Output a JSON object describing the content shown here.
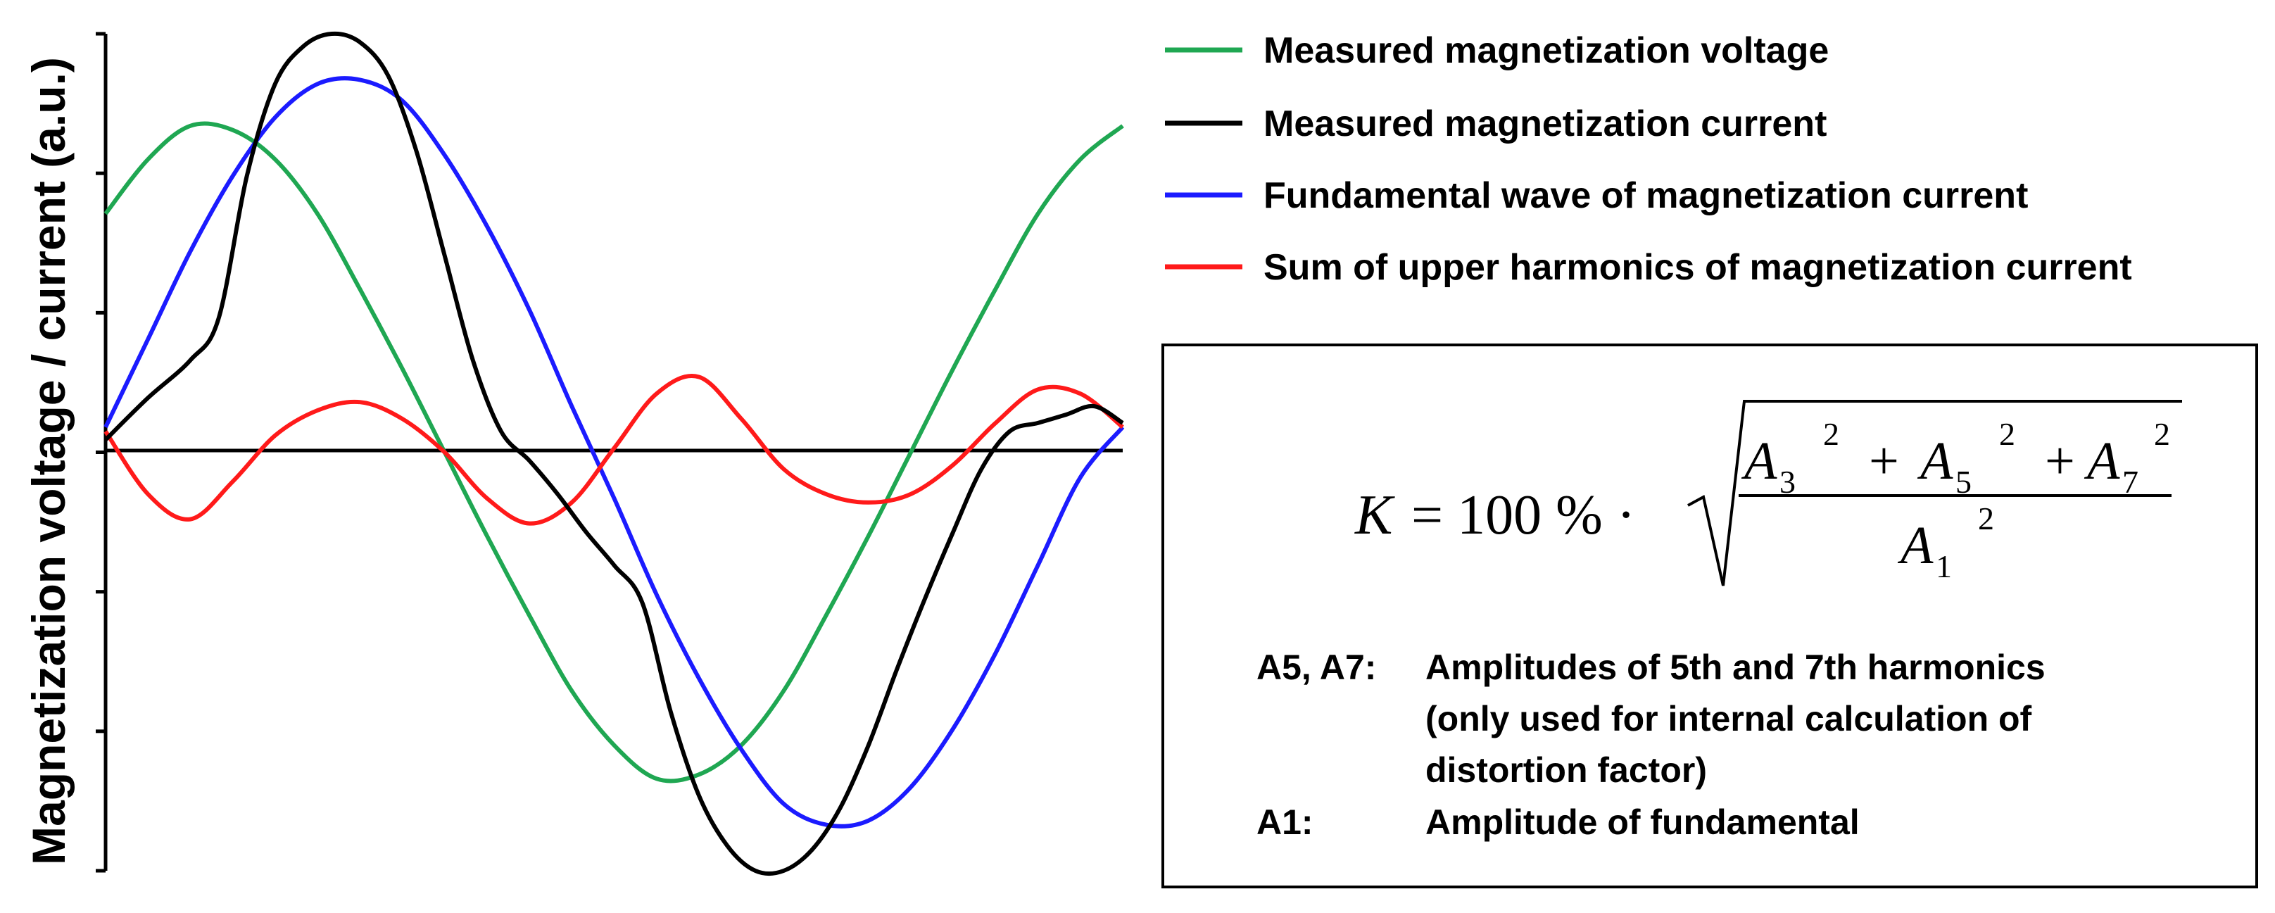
{
  "chart_data": {
    "type": "line",
    "title": "",
    "xlabel": "",
    "ylabel": "Magnetization voltage / current (a.u.)",
    "xlim": [
      0,
      360
    ],
    "ylim": [
      -1,
      1
    ],
    "grid": false,
    "legend_position": "top-right",
    "series": [
      {
        "name": "Measured magnetization voltage",
        "color": "#1fa752",
        "x": [
          0,
          15,
          30,
          45,
          60,
          75,
          90,
          105,
          120,
          135,
          150,
          165,
          180,
          195,
          210,
          225,
          240,
          255,
          270,
          285,
          300,
          315,
          330,
          345,
          360
        ],
        "y": [
          0.57,
          0.7,
          0.78,
          0.77,
          0.7,
          0.57,
          0.39,
          0.2,
          0.0,
          -0.2,
          -0.39,
          -0.57,
          -0.7,
          -0.78,
          -0.77,
          -0.7,
          -0.57,
          -0.39,
          -0.2,
          0.0,
          0.2,
          0.39,
          0.57,
          0.7,
          0.78
        ]
      },
      {
        "name": "Measured magnetization current",
        "color": "#000000",
        "x": [
          0,
          15,
          30,
          40,
          50,
          60,
          70,
          80,
          90,
          100,
          110,
          120,
          130,
          140,
          150,
          160,
          170,
          180,
          190,
          200,
          210,
          220,
          230,
          240,
          250,
          260,
          270,
          280,
          290,
          300,
          310,
          320,
          330,
          340,
          350,
          360
        ],
        "y": [
          0.03,
          0.13,
          0.22,
          0.32,
          0.66,
          0.88,
          0.97,
          1.0,
          0.98,
          0.9,
          0.72,
          0.47,
          0.22,
          0.05,
          -0.02,
          -0.1,
          -0.19,
          -0.27,
          -0.36,
          -0.62,
          -0.82,
          -0.94,
          -1.0,
          -1.0,
          -0.95,
          -0.85,
          -0.7,
          -0.52,
          -0.35,
          -0.19,
          -0.04,
          0.05,
          0.07,
          0.09,
          0.11,
          0.07
        ]
      },
      {
        "name": "Fundamental wave of magnetization current",
        "color": "#1b1bff",
        "x": [
          0,
          15,
          30,
          45,
          60,
          75,
          90,
          105,
          120,
          135,
          150,
          165,
          180,
          195,
          210,
          225,
          240,
          255,
          270,
          285,
          300,
          315,
          330,
          345,
          360
        ],
        "y": [
          0.06,
          0.27,
          0.48,
          0.66,
          0.8,
          0.88,
          0.89,
          0.84,
          0.71,
          0.54,
          0.34,
          0.11,
          -0.11,
          -0.34,
          -0.54,
          -0.71,
          -0.84,
          -0.89,
          -0.88,
          -0.8,
          -0.66,
          -0.48,
          -0.27,
          -0.06,
          0.06
        ]
      },
      {
        "name": "Sum of upper harmonics of magnetization current",
        "color": "#ff1a1a",
        "x": [
          0,
          15,
          30,
          45,
          60,
          75,
          90,
          105,
          120,
          135,
          150,
          165,
          180,
          195,
          210,
          225,
          240,
          255,
          270,
          285,
          300,
          315,
          330,
          345,
          360
        ],
        "y": [
          0.05,
          -0.1,
          -0.16,
          -0.07,
          0.04,
          0.1,
          0.12,
          0.08,
          0.0,
          -0.11,
          -0.17,
          -0.12,
          0.01,
          0.14,
          0.18,
          0.08,
          -0.04,
          -0.1,
          -0.12,
          -0.1,
          -0.03,
          0.07,
          0.15,
          0.14,
          0.06
        ]
      }
    ]
  },
  "legend": {
    "items": [
      {
        "label": "Measured magnetization voltage",
        "color": "#1fa752"
      },
      {
        "label": "Measured magnetization current",
        "color": "#000000"
      },
      {
        "label": "Fundamental wave of magnetization current",
        "color": "#1b1bff"
      },
      {
        "label": "Sum of upper harmonics of magnetization current",
        "color": "#ff1a1a"
      }
    ]
  },
  "formula": {
    "lhs": "K",
    "equals": "= 100 % ·",
    "numerator_terms": [
      "A",
      "3",
      "2",
      "+",
      "A",
      "5",
      "2",
      "+",
      "A",
      "7",
      "2"
    ],
    "denominator": [
      "A",
      "1",
      "2"
    ]
  },
  "notes": {
    "a5a7_key": "A5, A7:",
    "a5a7_line1": "Amplitudes of 5th and 7th harmonics",
    "a5a7_line2": "(only used for internal calculation of",
    "a5a7_line3": "distortion factor)",
    "a1_key": "A1:",
    "a1_text": "Amplitude of fundamental"
  }
}
